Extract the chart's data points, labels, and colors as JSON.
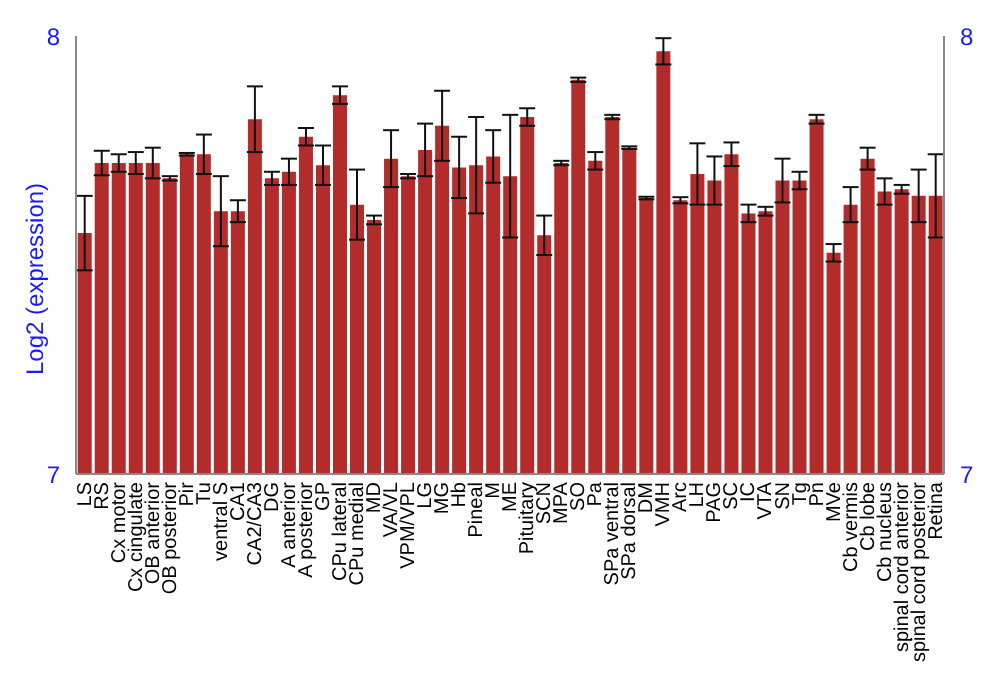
{
  "chart_data": {
    "type": "bar",
    "ylabel": "Log2 (expression)",
    "categories": [
      "LS",
      "RS",
      "Cx motor",
      "Cx cingulate",
      "OB anterior",
      "OB posterior",
      "Pir",
      "Tu",
      "ventral S",
      "CA1",
      "CA2/CA3",
      "DG",
      "A anterior",
      "A posterior",
      "GP",
      "CPu lateral",
      "CPu medial",
      "MD",
      "VA/VL",
      "VPM/VPL",
      "LG",
      "MG",
      "Hb",
      "Pineal",
      "M",
      "ME",
      "Pituitary",
      "SCN",
      "MPA",
      "SO",
      "Pa",
      "SPa ventral",
      "SPa dorsal",
      "DM",
      "VMH",
      "Arc",
      "LH",
      "PAG",
      "SC",
      "IC",
      "VTA",
      "SN",
      "Tg",
      "Pn",
      "MVe",
      "Cb vermis",
      "Cb lobe",
      "Cb nucleus",
      "spinal cord anterior",
      "spinal cord posterior",
      "Retina"
    ],
    "values": [
      7.55,
      7.71,
      7.71,
      7.71,
      7.71,
      7.675,
      7.73,
      7.73,
      7.6,
      7.6,
      7.81,
      7.675,
      7.69,
      7.77,
      7.705,
      7.865,
      7.615,
      7.58,
      7.72,
      7.68,
      7.74,
      7.795,
      7.7,
      7.705,
      7.725,
      7.68,
      7.815,
      7.545,
      7.71,
      7.9,
      7.715,
      7.815,
      7.745,
      7.63,
      7.965,
      7.625,
      7.685,
      7.67,
      7.73,
      7.595,
      7.6,
      7.67,
      7.67,
      7.81,
      7.505,
      7.615,
      7.72,
      7.645,
      7.65,
      7.635,
      7.635
    ],
    "errors": [
      0.085,
      0.028,
      0.02,
      0.025,
      0.035,
      0.005,
      0.003,
      0.045,
      0.08,
      0.025,
      0.075,
      0.015,
      0.03,
      0.02,
      0.045,
      0.02,
      0.08,
      0.01,
      0.065,
      0.005,
      0.06,
      0.08,
      0.07,
      0.11,
      0.06,
      0.14,
      0.02,
      0.045,
      0.005,
      0.005,
      0.02,
      0.005,
      0.003,
      0.003,
      0.03,
      0.007,
      0.07,
      0.055,
      0.027,
      0.02,
      0.01,
      0.05,
      0.02,
      0.01,
      0.02,
      0.04,
      0.025,
      0.03,
      0.01,
      0.06,
      0.095
    ],
    "color": "#b32c2c",
    "ylim": [
      7,
      8
    ],
    "yticks": [
      7,
      8
    ],
    "y2lim": [
      7,
      8
    ],
    "y2ticks": [
      7,
      8
    ]
  }
}
